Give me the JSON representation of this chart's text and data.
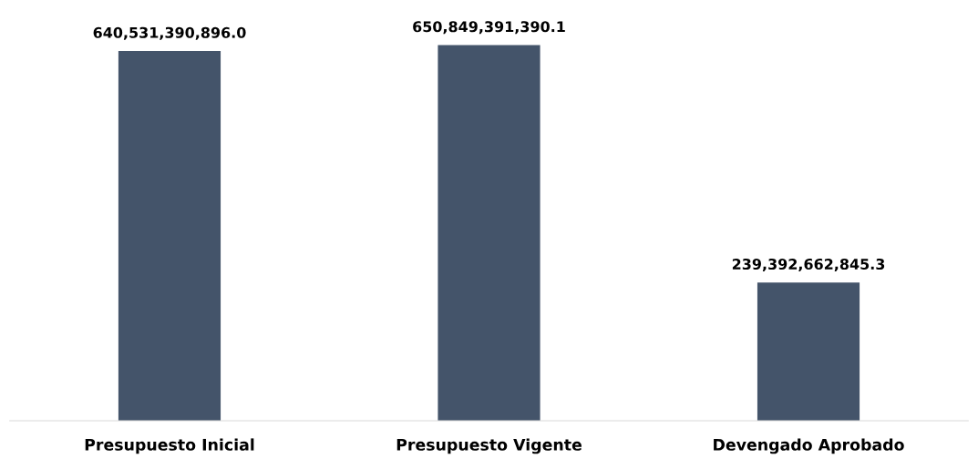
{
  "chart_data": {
    "type": "bar",
    "categories": [
      "Presupuesto Inicial",
      "Presupuesto Vigente",
      "Devengado Aprobado"
    ],
    "values": [
      640531390896.0,
      650849391390.1,
      239392662845.3
    ],
    "value_labels": [
      "640,531,390,896.0",
      "650,849,391,390.1",
      "239,392,662,845.3"
    ],
    "color": "#44546a",
    "grid": false,
    "legend": false
  }
}
